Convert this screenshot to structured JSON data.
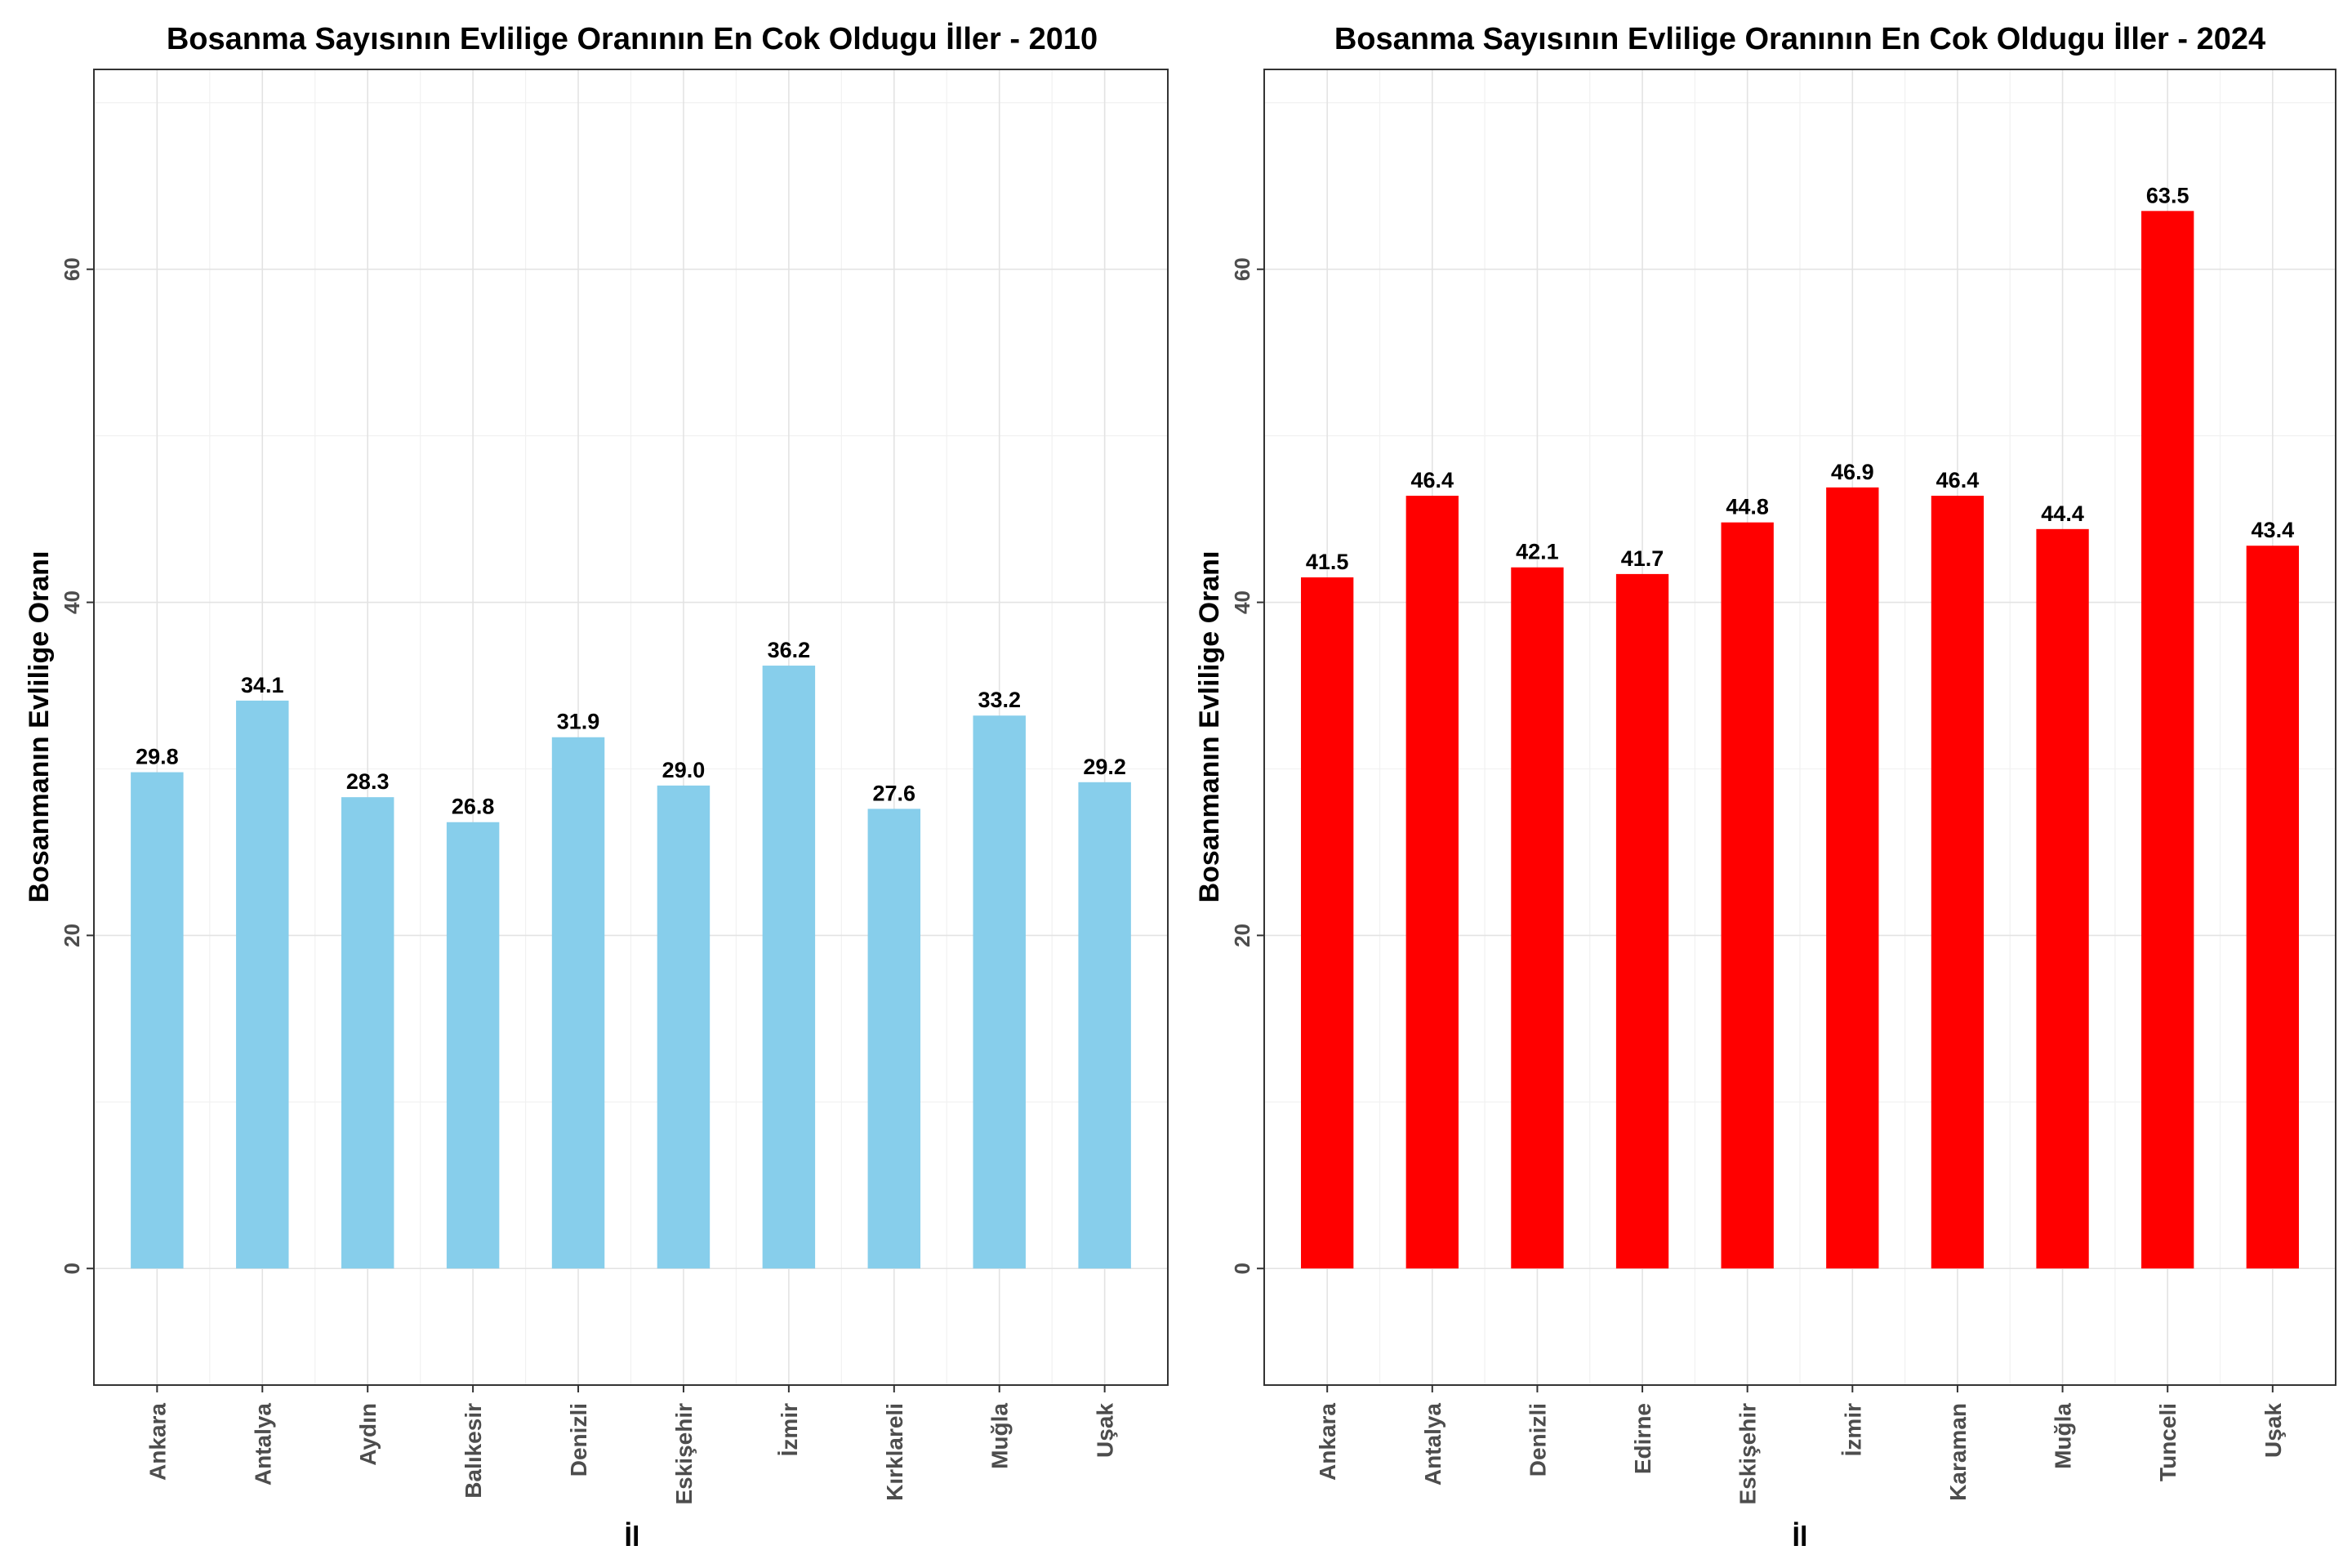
{
  "chart_data": [
    {
      "type": "bar",
      "title": "Bosanma Sayısının Evlilige Oranının En Cok Oldugu İller - 2010",
      "xlabel": "İl",
      "ylabel": "Bosanmanın Evlilige Oranı",
      "categories": [
        "Ankara",
        "Antalya",
        "Aydın",
        "Balıkesir",
        "Denizli",
        "Eskişehir",
        "İzmir",
        "Kırklareli",
        "Muğla",
        "Uşak"
      ],
      "values": [
        29.8,
        34.1,
        28.3,
        26.8,
        31.9,
        29.0,
        36.2,
        27.6,
        33.2,
        29.2
      ],
      "data_labels": [
        "29.8",
        "34.1",
        "28.3",
        "26.8",
        "31.9",
        "29.0",
        "36.2",
        "27.6",
        "33.2",
        "29.2"
      ],
      "y_ticks": [
        "0",
        "20",
        "40",
        "60"
      ],
      "ylim": [
        -7,
        72
      ],
      "bar_color": "#87CEEB",
      "grid": true,
      "legend": "none"
    },
    {
      "type": "bar",
      "title": "Bosanma Sayısının Evlilige Oranının En Cok Oldugu İller - 2024",
      "xlabel": "İl",
      "ylabel": "Bosanmanın Evlilige Oranı",
      "categories": [
        "Ankara",
        "Antalya",
        "Denizli",
        "Edirne",
        "Eskişehir",
        "İzmir",
        "Karaman",
        "Muğla",
        "Tunceli",
        "Uşak"
      ],
      "values": [
        41.5,
        46.4,
        42.1,
        41.7,
        44.8,
        46.9,
        46.4,
        44.4,
        63.5,
        43.4
      ],
      "data_labels": [
        "41.5",
        "46.4",
        "42.1",
        "41.7",
        "44.8",
        "46.9",
        "46.4",
        "44.4",
        "63.5",
        "43.4"
      ],
      "y_ticks": [
        "0",
        "20",
        "40",
        "60"
      ],
      "ylim": [
        -7,
        72
      ],
      "bar_color": "#FF0000",
      "grid": true,
      "legend": "none"
    }
  ]
}
